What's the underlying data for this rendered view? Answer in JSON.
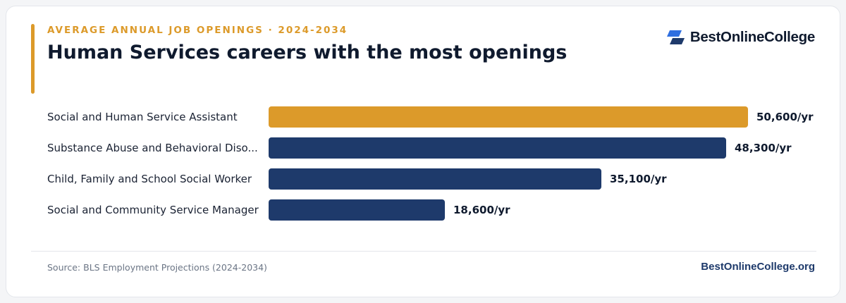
{
  "header": {
    "eyebrow": "AVERAGE ANNUAL JOB OPENINGS · 2024-2034",
    "title": "Human Services careers with the most openings",
    "brand_name": "BestOnlineCollege"
  },
  "footer": {
    "source": "Source: BLS Employment Projections (2024-2034)",
    "site": "BestOnlineCollege.org"
  },
  "colors": {
    "highlight": "#dc9a2a",
    "bar": "#1e3a6b",
    "text": "#0f1a2e",
    "label": "#1a2233"
  },
  "chart_data": {
    "type": "bar",
    "orientation": "horizontal",
    "categories": [
      "Social and Human Service Assistant",
      "Substance Abuse and Behavioral Diso...",
      "Child, Family and School Social Worker",
      "Social and Community Service Manager"
    ],
    "values": [
      50600,
      48300,
      35100,
      18600
    ],
    "value_labels": [
      "50,600/yr",
      "48,300/yr",
      "35,100/yr",
      "18,600/yr"
    ],
    "highlight_index": 0,
    "xlim": [
      0,
      50600
    ],
    "grid": false,
    "legend": "none"
  }
}
